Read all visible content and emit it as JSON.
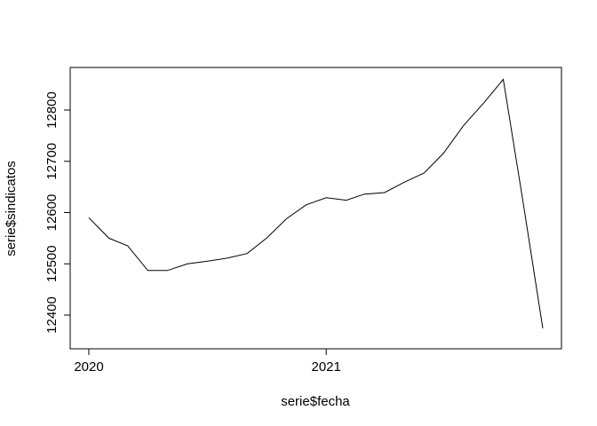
{
  "chart_data": {
    "type": "line",
    "xlabel": "serie$fecha",
    "ylabel": "serie$sindicatos",
    "xlim": [
      "2020-01-01",
      "2021-12-01"
    ],
    "ylim": [
      12357,
      12877
    ],
    "x_ticks": [
      {
        "date": "2020-01-01",
        "label": "2020"
      },
      {
        "date": "2021-01-01",
        "label": "2021"
      }
    ],
    "y_ticks": [
      12400,
      12500,
      12600,
      12700,
      12800
    ],
    "line_color": "#000000",
    "grid": false,
    "series": [
      {
        "x": [
          "2020-01-01",
          "2020-02-01",
          "2020-03-01",
          "2020-04-01",
          "2020-05-01",
          "2020-06-01",
          "2020-07-01",
          "2020-08-01",
          "2020-09-01",
          "2020-10-01",
          "2020-11-01",
          "2020-12-01",
          "2021-01-01",
          "2021-02-01",
          "2021-03-01",
          "2021-04-01",
          "2021-05-01",
          "2021-06-01",
          "2021-07-01",
          "2021-08-01",
          "2021-09-01",
          "2021-10-01",
          "2021-11-01",
          "2021-12-01"
        ],
        "values": [
          12590,
          12550,
          12535,
          12487,
          12487,
          12500,
          12505,
          12511,
          12520,
          12550,
          12588,
          12615,
          12629,
          12624,
          12636,
          12639,
          12659,
          12677,
          12716,
          12770,
          12814,
          12860,
          12617,
          12374
        ]
      }
    ]
  }
}
